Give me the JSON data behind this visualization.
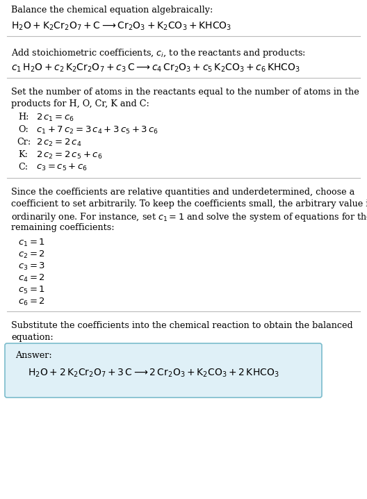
{
  "title_section": "Balance the chemical equation algebraically:",
  "equation1": "$\\mathrm{H_2O + K_2Cr_2O_7 + C \\longrightarrow Cr_2O_3 + K_2CO_3 + KHCO_3}$",
  "section2_title": "Add stoichiometric coefficients, $c_i$, to the reactants and products:",
  "equation2": "$c_1\\,\\mathrm{H_2O} + c_2\\,\\mathrm{K_2Cr_2O_7} + c_3\\,\\mathrm{C} \\longrightarrow c_4\\,\\mathrm{Cr_2O_3} + c_5\\,\\mathrm{K_2CO_3} + c_6\\,\\mathrm{KHCO_3}$",
  "section3_title1": "Set the number of atoms in the reactants equal to the number of atoms in the",
  "section3_title2": "products for H, O, Cr, K and C:",
  "atom_labels": [
    "H:",
    "O:",
    "Cr:",
    "K:",
    "C:"
  ],
  "atom_equations": [
    "$2\\,c_1 = c_6$",
    "$c_1 + 7\\,c_2 = 3\\,c_4 + 3\\,c_5 + 3\\,c_6$",
    "$2\\,c_2 = 2\\,c_4$",
    "$2\\,c_2 = 2\\,c_5 + c_6$",
    "$c_3 = c_5 + c_6$"
  ],
  "section4_line1": "Since the coefficients are relative quantities and underdetermined, choose a",
  "section4_line2": "coefficient to set arbitrarily. To keep the coefficients small, the arbitrary value is",
  "section4_line3": "ordinarily one. For instance, set $c_1 = 1$ and solve the system of equations for the",
  "section4_line4": "remaining coefficients:",
  "solution": [
    "$c_1 = 1$",
    "$c_2 = 2$",
    "$c_3 = 3$",
    "$c_4 = 2$",
    "$c_5 = 1$",
    "$c_6 = 2$"
  ],
  "section5_line1": "Substitute the coefficients into the chemical reaction to obtain the balanced",
  "section5_line2": "equation:",
  "answer_label": "Answer:",
  "answer_equation": "$\\mathrm{H_2O + 2\\,K_2Cr_2O_7 + 3\\,C \\longrightarrow 2\\,Cr_2O_3 + K_2CO_3 + 2\\,KHCO_3}$",
  "bg_color": "#ffffff",
  "answer_box_facecolor": "#dff0f7",
  "answer_box_edgecolor": "#7bbccc",
  "line_color": "#bbbbbb",
  "text_color": "#000000"
}
